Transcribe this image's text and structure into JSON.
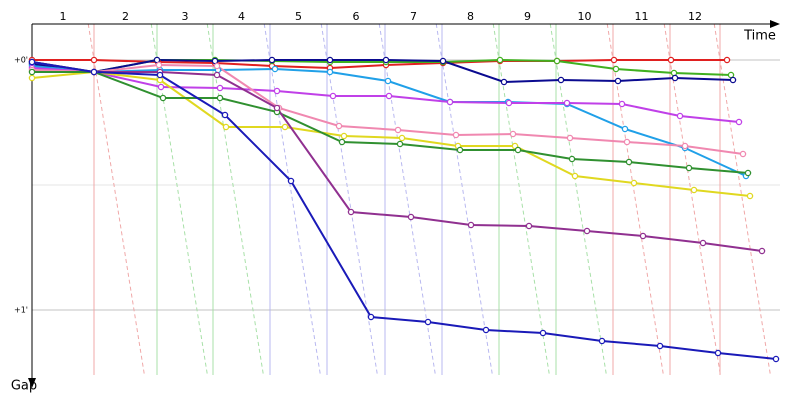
{
  "chart_data": {
    "type": "gap",
    "x_label": "Time",
    "y_label": "Gap",
    "categories": [
      "1",
      "2",
      "3",
      "4",
      "5",
      "6",
      "7",
      "8",
      "9",
      "10",
      "11",
      "12"
    ],
    "lap_ends": [
      1.55,
      3.125,
      4.525,
      5.95,
      7.375,
      8.825,
      10.25,
      11.675,
      13.1,
      14.525,
      15.95,
      17.2
    ],
    "lap_colors": [
      "#f0a8a8",
      "#a8e0a8",
      "#a8e0a8",
      "#b8b8f0",
      "#b8b8f0",
      "#b8b8f0",
      "#b8b8f0",
      "#a8e0a8",
      "#a8e0a8",
      "#f0a8a8",
      "#f0a8a8",
      "#f0a8a8"
    ],
    "xlim": [
      0,
      18.7
    ],
    "ylim": [
      -0.144,
      1.26
    ],
    "yticks": [
      {
        "value": 0,
        "label": "+0'"
      },
      {
        "value": 1,
        "label": "+1'"
      }
    ],
    "minor_yticks": [
      0.5
    ],
    "series": [
      {
        "color": "#e02020",
        "x": [
          0,
          1.55,
          3.15,
          4.575,
          6.0,
          7.45,
          8.85,
          10.275,
          11.7,
          13.125,
          14.55,
          15.975,
          17.375
        ],
        "values": [
          0,
          0,
          0.008,
          0.012,
          0.024,
          0.032,
          0.02,
          0.012,
          0.004,
          0.004,
          0,
          0,
          0
        ]
      },
      {
        "color": "#40b020",
        "x": [
          0,
          1.55,
          3.125,
          4.575,
          6.0,
          7.45,
          8.85,
          10.275,
          11.7,
          13.125,
          14.6,
          16.05,
          17.475
        ],
        "values": [
          0.008,
          0.048,
          0,
          0,
          0.004,
          0.008,
          0.008,
          0.008,
          0,
          0.004,
          0.036,
          0.052,
          0.06
        ]
      },
      {
        "color": "#0a0a90",
        "x": [
          0,
          1.55,
          3.125,
          4.575,
          6.0,
          7.45,
          8.85,
          10.275,
          11.8,
          13.225,
          14.65,
          16.075,
          17.525
        ],
        "values": [
          0.016,
          0.048,
          0,
          0.004,
          0,
          0,
          0,
          0.004,
          0.088,
          0.08,
          0.084,
          0.072,
          0.08
        ]
      },
      {
        "color": "#20a0e8",
        "x": [
          0,
          1.55,
          3.2,
          4.65,
          6.075,
          7.45,
          8.9,
          10.45,
          11.9,
          13.375,
          14.825,
          16.325,
          17.85
        ],
        "values": [
          0.024,
          0.048,
          0.04,
          0.04,
          0.036,
          0.048,
          0.084,
          0.168,
          0.168,
          0.176,
          0.276,
          0.352,
          0.464
        ]
      },
      {
        "color": "#c040e8",
        "x": [
          0,
          1.55,
          3.225,
          4.7,
          6.125,
          7.525,
          8.925,
          10.45,
          11.925,
          13.375,
          14.75,
          16.2,
          17.675
        ],
        "values": [
          0.032,
          0.048,
          0.108,
          0.112,
          0.124,
          0.144,
          0.144,
          0.168,
          0.172,
          0.172,
          0.176,
          0.224,
          0.248
        ]
      },
      {
        "color": "#f088b0",
        "x": [
          0,
          1.55,
          3.175,
          4.625,
          6.175,
          7.675,
          9.15,
          10.6,
          12.025,
          13.45,
          14.875,
          16.325,
          17.775
        ],
        "values": [
          0.04,
          0.048,
          0.02,
          0.024,
          0.192,
          0.264,
          0.28,
          0.3,
          0.296,
          0.312,
          0.328,
          0.344,
          0.376
        ]
      },
      {
        "color": "#e0d820",
        "x": [
          0,
          1.55,
          3.2,
          4.85,
          6.325,
          7.8,
          9.25,
          10.65,
          12.075,
          13.575,
          15.05,
          16.55,
          17.95
        ],
        "values": [
          0.072,
          0.048,
          0.08,
          0.268,
          0.268,
          0.304,
          0.312,
          0.344,
          0.344,
          0.464,
          0.492,
          0.52,
          0.544
        ]
      },
      {
        "color": "#309030",
        "x": [
          0,
          1.55,
          3.275,
          4.7,
          6.125,
          7.75,
          9.2,
          10.7,
          12.15,
          13.5,
          14.925,
          16.425,
          17.9
        ],
        "values": [
          0.048,
          0.048,
          0.152,
          0.152,
          0.208,
          0.328,
          0.336,
          0.36,
          0.36,
          0.396,
          0.408,
          0.432,
          0.452
        ]
      },
      {
        "color": "#903090",
        "x": [
          0,
          1.55,
          3.2,
          4.625,
          6.125,
          7.975,
          9.475,
          10.975,
          12.425,
          13.875,
          15.275,
          16.775,
          18.25
        ],
        "values": [
          0.008,
          0.048,
          0.048,
          0.06,
          0.192,
          0.608,
          0.628,
          0.66,
          0.664,
          0.684,
          0.704,
          0.732,
          0.764
        ]
      },
      {
        "color": "#1a1ab8",
        "x": [
          0,
          1.55,
          3.2,
          4.825,
          6.475,
          8.475,
          9.9,
          11.35,
          12.775,
          14.25,
          15.7,
          17.15,
          18.6
        ],
        "values": [
          0.008,
          0.048,
          0.06,
          0.22,
          0.484,
          1.028,
          1.048,
          1.08,
          1.092,
          1.124,
          1.144,
          1.172,
          1.196
        ]
      }
    ]
  }
}
